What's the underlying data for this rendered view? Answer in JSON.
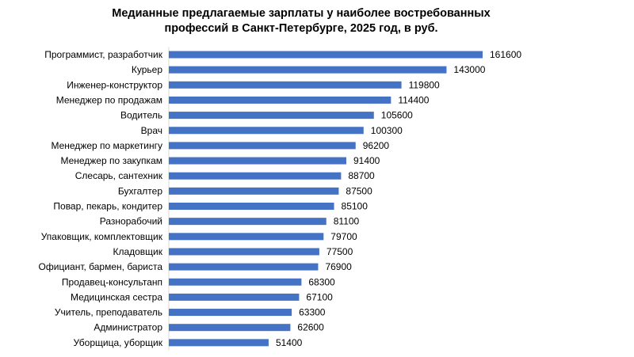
{
  "chart_data": {
    "type": "bar",
    "orientation": "horizontal",
    "title": "Медианные предлагаемые зарплаты у наиболее востребованных профессий в Санкт-Петербурге, 2025 год, в руб.",
    "title_lines": [
      "Медианные предлагаемые зарплаты у наиболее востребованных",
      "профессий в Санкт-Петербурге, 2025 год, в руб."
    ],
    "categories": [
      "Программист, разработчик",
      "Курьер",
      "Инженер-конструктор",
      "Менеджер по продажам",
      "Водитель",
      "Врач",
      "Менеджер по маркетингу",
      "Менеджер по закупкам",
      "Слесарь, сантехник",
      "Бухгалтер",
      "Повар, пекарь, кондитер",
      "Разнорабочий",
      "Упаковщик, комплектовщик",
      "Кладовщик",
      "Официант, бармен, бариста",
      "Продавец-консультанп",
      "Медицинская сестра",
      "Учитель, преподаватель",
      "Администратор",
      "Уборщица, уборщик"
    ],
    "values": [
      161600,
      143000,
      119800,
      114400,
      105600,
      100300,
      96200,
      91400,
      88700,
      87500,
      85100,
      81100,
      79700,
      77500,
      76900,
      68300,
      67100,
      63300,
      62600,
      51400
    ],
    "bar_color": "#4472C4",
    "xlim": [
      0,
      161600
    ],
    "grid": false,
    "legend": "none",
    "xlabel": "",
    "ylabel": ""
  }
}
